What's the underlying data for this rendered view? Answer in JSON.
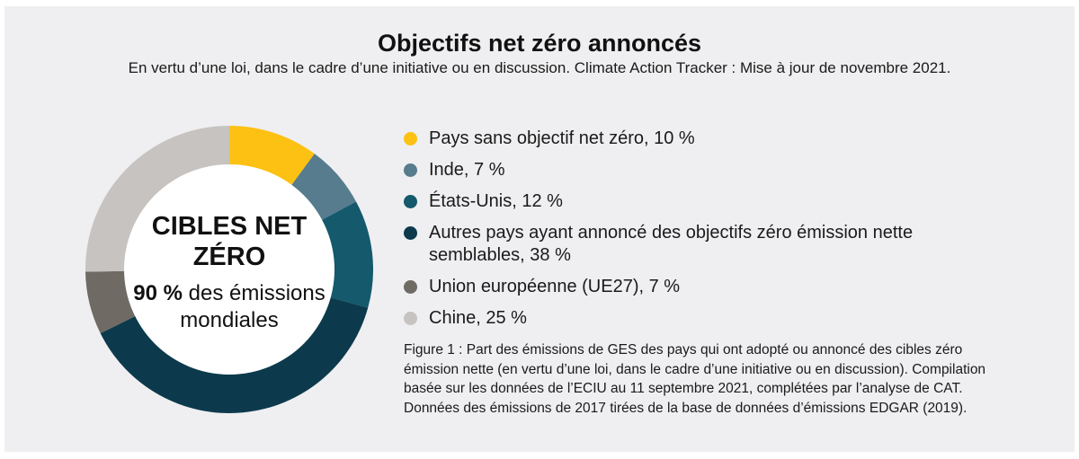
{
  "page": {
    "background": "#ffffff",
    "panel_background": "#efeff1"
  },
  "header": {
    "title": "Objectifs net zéro annoncés",
    "subtitle": "En vertu d’une loi, dans le cadre d’une initiative ou en discussion. Climate Action Tracker : Mise à jour de novembre 2021."
  },
  "donut_center": {
    "heading": "CIBLES NET\nZÉRO",
    "stat_bold": "90 %",
    "stat_rest": " des émissions\nmondiales"
  },
  "chart_data": {
    "type": "pie",
    "subtype": "donut",
    "title": "Objectifs net zéro annoncés",
    "start_angle_deg": 0,
    "direction": "clockwise",
    "outer_radius_px": 160,
    "inner_radius_px": 117,
    "center_text": "CIBLES NET ZÉRO — 90 % des émissions mondiales",
    "legend_position": "right",
    "segments": [
      {
        "label": "Pays sans objectif net zéro",
        "value_pct": 10,
        "display": "Pays sans objectif net zéro, 10 %",
        "color": "#fcc113"
      },
      {
        "label": "Inde",
        "value_pct": 7,
        "display": "Inde, 7 %",
        "color": "#567c8d"
      },
      {
        "label": "États-Unis",
        "value_pct": 12,
        "display": "États-Unis, 12 %",
        "color": "#14596c"
      },
      {
        "label": "Autres pays ayant annoncé des objectifs zéro émission nette semblables",
        "value_pct": 38,
        "display": "Autres pays ayant annoncé des objectifs zéro émission nette semblables, 38 %",
        "color": "#0c3a4c"
      },
      {
        "label": "Union européenne (UE27)",
        "value_pct": 7,
        "display": "Union européenne (UE27), 7 %",
        "color": "#6f6a63"
      },
      {
        "label": "Chine",
        "value_pct": 25,
        "display": "Chine, 25 %",
        "color": "#c6c3c0"
      }
    ]
  },
  "caption": {
    "text": "Figure 1 : Part des émissions de GES des pays qui ont adopté ou annoncé des cibles zéro émission nette (en vertu d’une loi, dans le cadre d’une initiative ou en discussion). Compilation basée sur les données de l’ECIU au 11 septembre 2021, complétées par l’analyse de CAT. Données des émissions de 2017 tirées de la base de données d’émissions EDGAR (2019)."
  }
}
